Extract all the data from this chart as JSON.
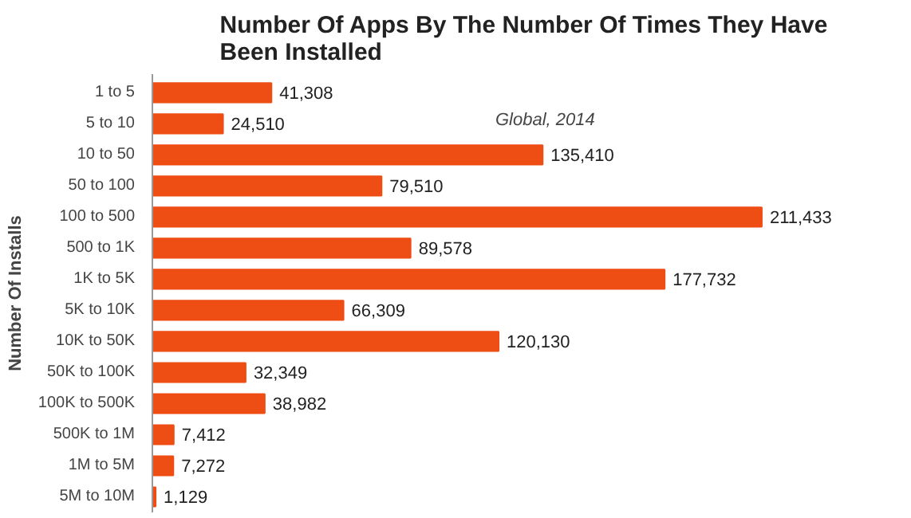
{
  "chart_data": {
    "type": "bar",
    "orientation": "horizontal",
    "tick_labels": "y",
    "title": "Number Of Apps By The Number Of Times They Have Been Installed",
    "ylabel": "Number Of Installs",
    "annotations": [
      "Global, 2014"
    ],
    "categories": [
      "1 to 5",
      "5 to 10",
      "10 to 50",
      "50 to 100",
      "100 to 500",
      "500 to 1K",
      "1K to 5K",
      "5K to 10K",
      "10K to 50K",
      "50K to 100K",
      "100K to 500K",
      "500K to 1M",
      "1M to 5M",
      "5M to 10M"
    ],
    "values": [
      41308,
      24510,
      135410,
      79510,
      211433,
      89578,
      177732,
      66309,
      120130,
      32349,
      38982,
      7412,
      7272,
      1129
    ],
    "value_labels": [
      "41,308",
      "24,510",
      "135,410",
      "79,510",
      "211,433",
      "89,578",
      "177,732",
      "66,309",
      "120,130",
      "32,349",
      "38,982",
      "7,412",
      "7,272",
      "1,129"
    ],
    "color": "#ee4d14",
    "grid": false
  }
}
